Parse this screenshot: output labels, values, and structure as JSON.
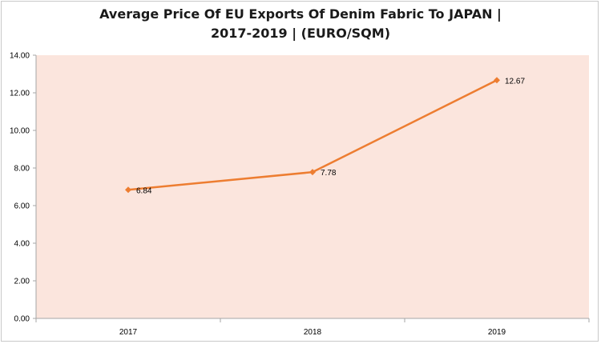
{
  "chart_data": {
    "type": "line",
    "title_line1": "Average Price Of EU Exports Of Denim Fabric To JAPAN |",
    "title_line2": "2017-2019  | (EURO/SQM)",
    "categories": [
      "2017",
      "2018",
      "2019"
    ],
    "series": [
      {
        "values": [
          6.84,
          7.78,
          12.67
        ],
        "labels": [
          "6.84",
          "7.78",
          "12.67"
        ]
      }
    ],
    "y_ticks": [
      "0.00",
      "2.00",
      "4.00",
      "6.00",
      "8.00",
      "10.00",
      "12.00",
      "14.00"
    ],
    "ylim": [
      0,
      14
    ],
    "grid": false,
    "legend": "none",
    "colors": {
      "line": "#ed7d31",
      "plot_background": "#fbe5dd",
      "axis": "#a6a6a6"
    }
  }
}
